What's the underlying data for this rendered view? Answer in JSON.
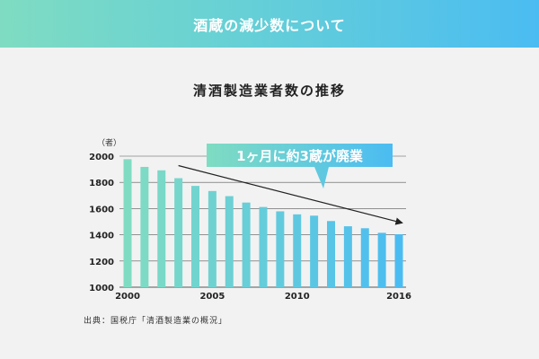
{
  "header": {
    "title": "酒蔵の減少数について"
  },
  "chart_title": "清酒製造業者数の推移",
  "source_text": "出典：国税庁「清酒製造業の概況」",
  "colors": {
    "bar_start": "#7fdcc2",
    "bar_end": "#4bbcf2",
    "callout_start": "#7fdcc2",
    "callout_end": "#4bbcf2",
    "trend_arrow": "#222222",
    "grid": "#555555",
    "background": "#f2f2f2"
  },
  "chart_data": {
    "type": "bar",
    "title": "清酒製造業者数の推移",
    "xlabel": "",
    "ylabel": "（者）",
    "ylim": [
      1000,
      2000
    ],
    "yticks": [
      1000,
      1200,
      1400,
      1600,
      1800,
      2000
    ],
    "grid": true,
    "x": [
      2000,
      2001,
      2002,
      2003,
      2004,
      2005,
      2006,
      2007,
      2008,
      2009,
      2010,
      2011,
      2012,
      2013,
      2014,
      2015,
      2016
    ],
    "xtick_labels": [
      "2000",
      "2005",
      "2010",
      "2016"
    ],
    "values": [
      1977,
      1918,
      1892,
      1832,
      1773,
      1734,
      1695,
      1646,
      1612,
      1579,
      1556,
      1546,
      1505,
      1465,
      1450,
      1415,
      1404
    ],
    "annotation": "1ヶ月に約3蔵が廃業",
    "trend_arrow": {
      "from_x": 2003,
      "from_y": 1928,
      "to_x": 2016,
      "to_y": 1490
    }
  }
}
